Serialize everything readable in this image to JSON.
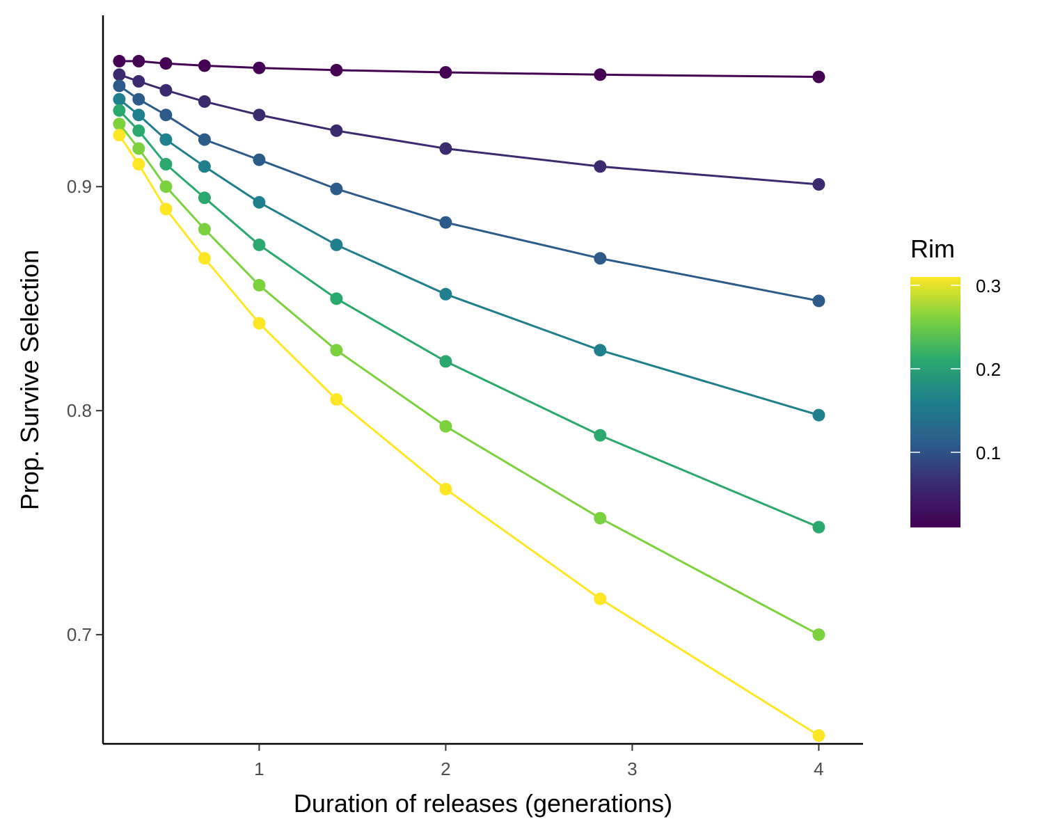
{
  "chart_data": {
    "type": "line",
    "xlabel": "Duration of releases (generations)",
    "ylabel": "Prop. Survive Selection",
    "xlim": [
      0.2,
      4.2
    ],
    "ylim": [
      0.655,
      0.974
    ],
    "x_ticks": [
      1,
      2,
      3,
      4
    ],
    "x_tick_labels": [
      "1",
      "2",
      "3",
      "4"
    ],
    "y_ticks": [
      0.7,
      0.8,
      0.9
    ],
    "y_tick_labels": [
      "0.7",
      "0.8",
      "0.9"
    ],
    "x": [
      0.25,
      0.354,
      0.5,
      0.707,
      1,
      1.414,
      2,
      2.828,
      4
    ],
    "series": [
      {
        "rim": 0.01,
        "color": "#440154",
        "values": [
          0.956,
          0.956,
          0.955,
          0.954,
          0.953,
          0.952,
          0.951,
          0.95,
          0.949
        ]
      },
      {
        "rim": 0.06,
        "color": "#3b2a6e",
        "values": [
          0.95,
          0.947,
          0.943,
          0.938,
          0.932,
          0.925,
          0.917,
          0.909,
          0.901
        ]
      },
      {
        "rim": 0.11,
        "color": "#2c5b8a",
        "values": [
          0.945,
          0.939,
          0.932,
          0.921,
          0.912,
          0.899,
          0.884,
          0.868,
          0.849
        ]
      },
      {
        "rim": 0.16,
        "color": "#1f7f8c",
        "values": [
          0.939,
          0.932,
          0.921,
          0.909,
          0.893,
          0.874,
          0.852,
          0.827,
          0.798
        ]
      },
      {
        "rim": 0.21,
        "color": "#2aa86e",
        "values": [
          0.934,
          0.925,
          0.91,
          0.895,
          0.874,
          0.85,
          0.822,
          0.789,
          0.748
        ]
      },
      {
        "rim": 0.26,
        "color": "#7cd13f",
        "values": [
          0.928,
          0.917,
          0.9,
          0.881,
          0.856,
          0.827,
          0.793,
          0.752,
          0.7
        ]
      },
      {
        "rim": 0.31,
        "color": "#fde725",
        "values": [
          0.923,
          0.91,
          0.89,
          0.868,
          0.839,
          0.805,
          0.765,
          0.716,
          0.655
        ]
      }
    ],
    "legend": {
      "title": "Rim",
      "placement": "right",
      "type": "colorbar",
      "range": [
        0.01,
        0.31
      ],
      "ticks": [
        0.1,
        0.2,
        0.3
      ],
      "tick_labels": [
        "0.1",
        "0.2",
        "0.3"
      ],
      "colors": [
        "#440154",
        "#3b2a6e",
        "#2c5b8a",
        "#1f7f8c",
        "#2aa86e",
        "#7cd13f",
        "#fde725"
      ]
    },
    "grid": false
  }
}
